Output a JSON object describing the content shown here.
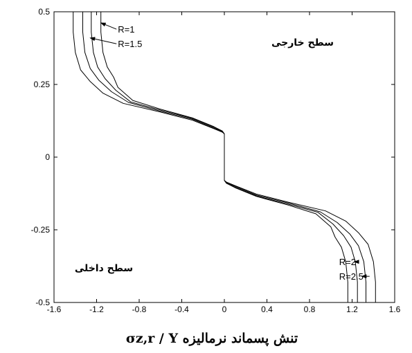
{
  "chart_data": {
    "type": "line",
    "xlabel": "تنش پسماند نرمالیزه σz,r / Y",
    "xlim": [
      -1.6,
      1.6
    ],
    "ylim": [
      -0.5,
      0.5
    ],
    "xticks": [
      "-1.6",
      "-1.2",
      "-0.8",
      "-0.4",
      "0",
      "0.4",
      "0.8",
      "1.2",
      "1.6"
    ],
    "yticks": [
      "0.5",
      "0.25",
      "0",
      "-0.25",
      "-0.5"
    ],
    "region_labels": {
      "outer": "سطح خارجی",
      "inner": "سطح داخلی"
    },
    "series": [
      {
        "name": "R=1",
        "x": [
          -1.16,
          -1.16,
          -1.14,
          -1.1,
          -1.04,
          -1.0,
          -0.86,
          -0.6,
          -0.3,
          -0.1,
          -0.02,
          0.0,
          0.0,
          0.02,
          0.1,
          0.3,
          0.6,
          0.86,
          1.0,
          1.04,
          1.1,
          1.14,
          1.16,
          1.16
        ],
        "y": [
          0.5,
          0.43,
          0.36,
          0.31,
          0.275,
          0.24,
          0.195,
          0.165,
          0.135,
          0.105,
          0.09,
          0.08,
          -0.08,
          -0.09,
          -0.105,
          -0.135,
          -0.165,
          -0.195,
          -0.24,
          -0.275,
          -0.31,
          -0.36,
          -0.43,
          -0.5
        ]
      },
      {
        "name": "R=1.5",
        "x": [
          -1.25,
          -1.25,
          -1.23,
          -1.19,
          -1.12,
          -1.02,
          -0.88,
          -0.6,
          -0.3,
          -0.1,
          -0.02,
          0.0,
          0.0,
          0.02,
          0.1,
          0.3,
          0.6,
          0.88,
          1.02,
          1.12,
          1.19,
          1.23,
          1.25,
          1.25
        ],
        "y": [
          0.5,
          0.43,
          0.36,
          0.31,
          0.27,
          0.23,
          0.19,
          0.162,
          0.133,
          0.103,
          0.09,
          0.08,
          -0.08,
          -0.09,
          -0.103,
          -0.133,
          -0.162,
          -0.19,
          -0.23,
          -0.27,
          -0.31,
          -0.36,
          -0.43,
          -0.5
        ]
      },
      {
        "name": "R=2",
        "x": [
          -1.33,
          -1.33,
          -1.31,
          -1.26,
          -1.18,
          -1.06,
          -0.9,
          -0.6,
          -0.3,
          -0.1,
          -0.02,
          0.0,
          0.0,
          0.02,
          0.1,
          0.3,
          0.6,
          0.9,
          1.06,
          1.18,
          1.26,
          1.31,
          1.33,
          1.33
        ],
        "y": [
          0.5,
          0.43,
          0.36,
          0.305,
          0.265,
          0.225,
          0.188,
          0.158,
          0.13,
          0.1,
          0.088,
          0.08,
          -0.08,
          -0.088,
          -0.1,
          -0.13,
          -0.158,
          -0.188,
          -0.225,
          -0.265,
          -0.305,
          -0.36,
          -0.43,
          -0.5
        ]
      },
      {
        "name": "R=2.5",
        "x": [
          -1.42,
          -1.42,
          -1.4,
          -1.35,
          -1.26,
          -1.14,
          -0.95,
          -0.6,
          -0.3,
          -0.1,
          -0.02,
          0.0,
          0.0,
          0.02,
          0.1,
          0.3,
          0.6,
          0.95,
          1.14,
          1.26,
          1.35,
          1.4,
          1.42,
          1.42
        ],
        "y": [
          0.5,
          0.43,
          0.36,
          0.3,
          0.26,
          0.22,
          0.185,
          0.155,
          0.127,
          0.098,
          0.086,
          0.08,
          -0.08,
          -0.086,
          -0.098,
          -0.127,
          -0.155,
          -0.185,
          -0.22,
          -0.26,
          -0.3,
          -0.36,
          -0.43,
          -0.5
        ]
      }
    ],
    "annotations": [
      {
        "text": "R=1",
        "x": -1.0,
        "y": 0.44,
        "arrow_to": [
          -1.16,
          0.462
        ]
      },
      {
        "text": "R=1.5",
        "x": -1.0,
        "y": 0.39,
        "arrow_to": [
          -1.26,
          0.41
        ]
      },
      {
        "text": "R=2",
        "x": 1.0,
        "y": -0.36,
        "arrow_to": [
          1.22,
          -0.36
        ]
      },
      {
        "text": "R=2.5",
        "x": 1.0,
        "y": -0.41,
        "arrow_to": [
          1.29,
          -0.41
        ]
      }
    ]
  }
}
